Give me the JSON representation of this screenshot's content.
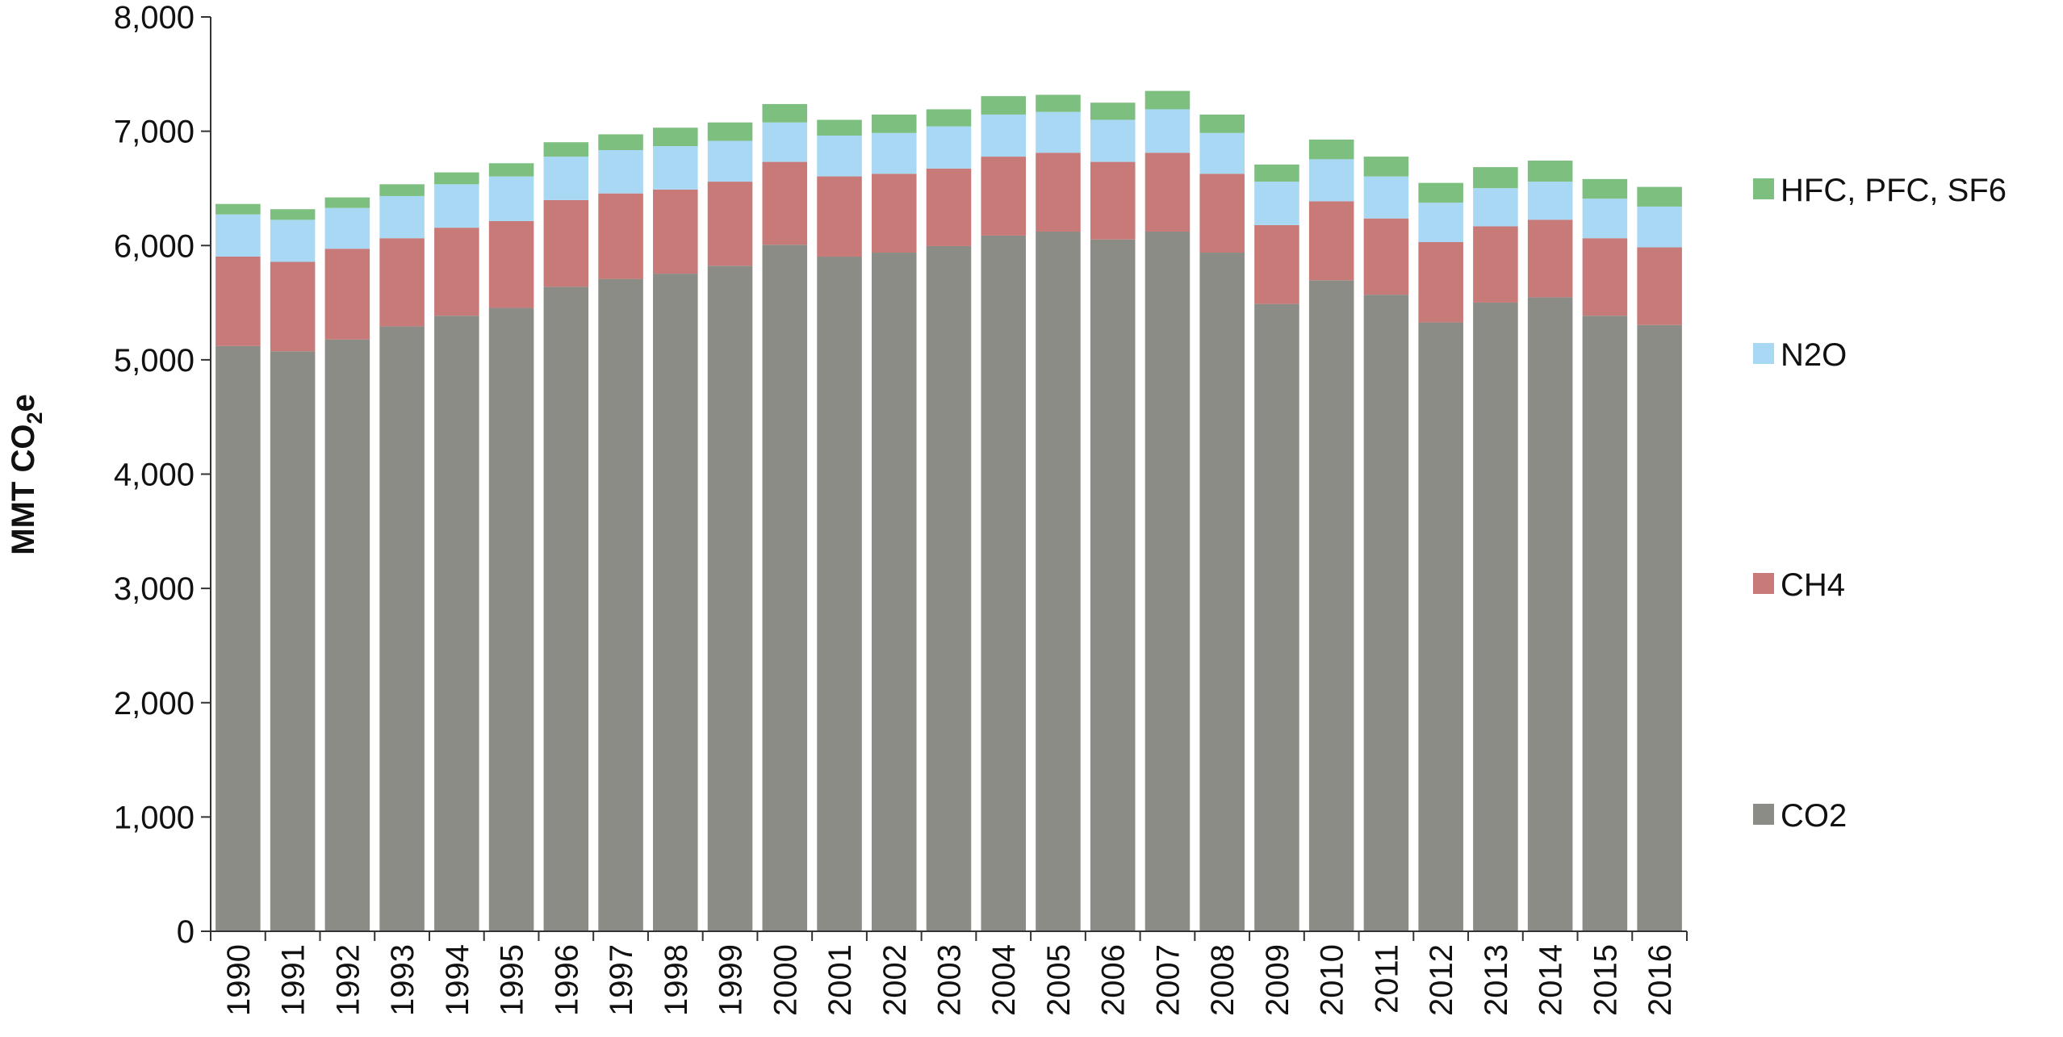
{
  "chart_data": {
    "type": "bar",
    "stacked": true,
    "title": "",
    "xlabel": "",
    "ylabel": "MMT CO2e",
    "ylabel_parts": {
      "main": "MMT CO",
      "sub": "2",
      "tail": "e"
    },
    "ylim": [
      0,
      8000
    ],
    "yticks": [
      0,
      1000,
      2000,
      3000,
      4000,
      5000,
      6000,
      7000,
      8000
    ],
    "ytick_labels": [
      "0",
      "1,000",
      "2,000",
      "3,000",
      "4,000",
      "5,000",
      "6,000",
      "7,000",
      "8,000"
    ],
    "grid": false,
    "legend_position": "right",
    "categories": [
      "1990",
      "1991",
      "1992",
      "1993",
      "1994",
      "1995",
      "1996",
      "1997",
      "1998",
      "1999",
      "2000",
      "2001",
      "2002",
      "2003",
      "2004",
      "2005",
      "2006",
      "2007",
      "2008",
      "2009",
      "2010",
      "2011",
      "2012",
      "2013",
      "2014",
      "2015",
      "2016"
    ],
    "series": [
      {
        "name": "CO2",
        "color": "#8c8c86",
        "values": [
          5121,
          5075,
          5178,
          5293,
          5386,
          5455,
          5639,
          5708,
          5754,
          5823,
          6007,
          5903,
          5938,
          5995,
          6087,
          6122,
          6053,
          6122,
          5938,
          5489,
          5696,
          5570,
          5328,
          5501,
          5547,
          5386,
          5305
        ]
      },
      {
        "name": "CH4",
        "color": "#c87a78",
        "values": [
          782,
          782,
          794,
          771,
          770,
          759,
          759,
          748,
          736,
          736,
          725,
          702,
          690,
          679,
          691,
          690,
          679,
          690,
          690,
          690,
          691,
          667,
          702,
          667,
          679,
          678,
          679
        ]
      },
      {
        "name": "N2O",
        "color": "#a9d8f4",
        "values": [
          369,
          368,
          357,
          369,
          380,
          391,
          380,
          379,
          380,
          357,
          345,
          357,
          357,
          369,
          368,
          357,
          368,
          380,
          357,
          380,
          368,
          368,
          345,
          334,
          333,
          346,
          357
        ]
      },
      {
        "name": "HFC, PFC, SF6",
        "color": "#7dbf7f",
        "values": [
          92,
          93,
          92,
          103,
          104,
          115,
          126,
          138,
          161,
          161,
          161,
          138,
          161,
          149,
          161,
          150,
          150,
          161,
          161,
          150,
          172,
          173,
          173,
          184,
          184,
          172,
          172
        ]
      }
    ]
  }
}
